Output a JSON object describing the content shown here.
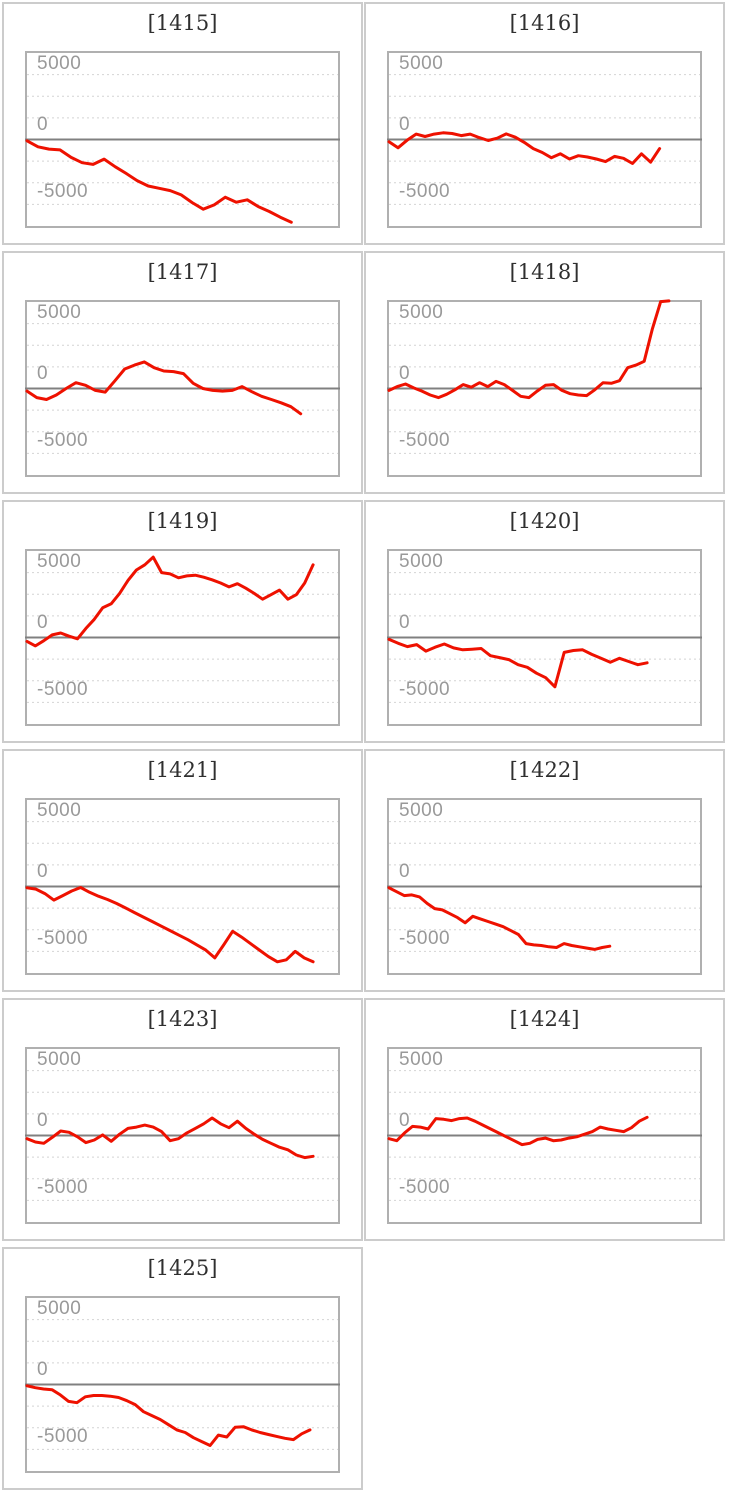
{
  "axis": {
    "labels": [
      "5000",
      "0",
      "-5000"
    ]
  },
  "colors": {
    "series_line": "#ee1100",
    "zero_line": "#808080",
    "gridline": "#d4d4d4",
    "plot_border": "#b0b0b0",
    "cell_border": "#cccccc",
    "axis_label": "#999999",
    "title_text": "#2f2f2f",
    "background": "#ffffff"
  },
  "chart_data": [
    {
      "type": "line",
      "title": "[1415]",
      "y_ticks": [
        5000,
        0,
        -5000
      ],
      "ylim": [
        -6667,
        6667
      ],
      "grid": "dashed",
      "end_frac": 0.85,
      "values": [
        -100,
        -560,
        -740,
        -800,
        -1380,
        -1790,
        -1920,
        -1510,
        -2100,
        -2610,
        -3170,
        -3580,
        -3760,
        -3940,
        -4270,
        -4860,
        -5370,
        -5040,
        -4450,
        -4830,
        -4650,
        -5170,
        -5550,
        -5990,
        -6370
      ]
    },
    {
      "type": "line",
      "title": "[1416]",
      "y_ticks": [
        5000,
        0,
        -5000
      ],
      "ylim": [
        -6667,
        6667
      ],
      "grid": "dashed",
      "end_frac": 0.87,
      "values": [
        -180,
        -640,
        -60,
        420,
        230,
        420,
        520,
        460,
        300,
        420,
        150,
        -80,
        100,
        430,
        180,
        -220,
        -700,
        -1000,
        -1400,
        -1100,
        -1500,
        -1250,
        -1350,
        -1500,
        -1700,
        -1300,
        -1450,
        -1850,
        -1100,
        -1750,
        -700
      ]
    },
    {
      "type": "line",
      "title": "[1417]",
      "y_ticks": [
        5000,
        0,
        -5000
      ],
      "ylim": [
        -6667,
        6667
      ],
      "grid": "dashed",
      "end_frac": 0.88,
      "values": [
        -200,
        -700,
        -850,
        -500,
        0,
        450,
        250,
        -150,
        -280,
        600,
        1500,
        1800,
        2050,
        1600,
        1350,
        1300,
        1150,
        400,
        0,
        -150,
        -200,
        -150,
        150,
        -250,
        -600,
        -850,
        -1100,
        -1400,
        -1950
      ]
    },
    {
      "type": "line",
      "title": "[1418]",
      "y_ticks": [
        5000,
        0,
        -5000
      ],
      "ylim": [
        -6667,
        6667
      ],
      "grid": "dashed",
      "end_frac": 0.9,
      "values": [
        -150,
        150,
        350,
        50,
        -200,
        -500,
        -700,
        -450,
        -100,
        300,
        100,
        450,
        150,
        550,
        300,
        -150,
        -600,
        -700,
        -200,
        250,
        300,
        -150,
        -400,
        -500,
        -550,
        -100,
        450,
        400,
        600,
        1600,
        1800,
        2100,
        4600,
        6700,
        6750
      ]
    },
    {
      "type": "line",
      "title": "[1419]",
      "y_ticks": [
        5000,
        0,
        -5000
      ],
      "ylim": [
        -6667,
        6667
      ],
      "grid": "dashed",
      "end_frac": 0.92,
      "values": [
        -300,
        -650,
        -250,
        200,
        350,
        100,
        -100,
        700,
        1400,
        2300,
        2600,
        3400,
        4400,
        5200,
        5600,
        6200,
        5000,
        4900,
        4600,
        4750,
        4800,
        4650,
        4450,
        4200,
        3900,
        4150,
        3800,
        3400,
        2950,
        3300,
        3650,
        2950,
        3300,
        4200,
        5600
      ]
    },
    {
      "type": "line",
      "title": "[1420]",
      "y_ticks": [
        5000,
        0,
        -5000
      ],
      "ylim": [
        -6667,
        6667
      ],
      "grid": "dashed",
      "end_frac": 0.83,
      "values": [
        -150,
        -450,
        -700,
        -550,
        -1050,
        -750,
        -500,
        -800,
        -950,
        -900,
        -850,
        -1400,
        -1550,
        -1700,
        -2100,
        -2300,
        -2750,
        -3100,
        -3800,
        -1150,
        -1000,
        -950,
        -1300,
        -1600,
        -1900,
        -1600,
        -1850,
        -2100,
        -1950
      ]
    },
    {
      "type": "line",
      "title": "[1421]",
      "y_ticks": [
        5000,
        0,
        -5000
      ],
      "ylim": [
        -6667,
        6667
      ],
      "grid": "dashed",
      "end_frac": 0.92,
      "values": [
        -100,
        -200,
        -550,
        -1050,
        -700,
        -350,
        -80,
        -450,
        -750,
        -1000,
        -1300,
        -1650,
        -2000,
        -2350,
        -2700,
        -3050,
        -3400,
        -3750,
        -4100,
        -4500,
        -4900,
        -5500,
        -4500,
        -3450,
        -3900,
        -4400,
        -4900,
        -5400,
        -5800,
        -5650,
        -5000,
        -5500,
        -5800
      ]
    },
    {
      "type": "line",
      "title": "[1422]",
      "y_ticks": [
        5000,
        0,
        -5000
      ],
      "ylim": [
        -6667,
        6667
      ],
      "grid": "dashed",
      "end_frac": 0.71,
      "values": [
        -100,
        -400,
        -700,
        -650,
        -800,
        -1300,
        -1700,
        -1800,
        -2100,
        -2400,
        -2800,
        -2300,
        -2500,
        -2700,
        -2900,
        -3100,
        -3400,
        -3700,
        -4400,
        -4500,
        -4550,
        -4650,
        -4700,
        -4400,
        -4550,
        -4650,
        -4750,
        -4850,
        -4700,
        -4600
      ]
    },
    {
      "type": "line",
      "title": "[1423]",
      "y_ticks": [
        5000,
        0,
        -5000
      ],
      "ylim": [
        -6667,
        6667
      ],
      "grid": "dashed",
      "end_frac": 0.92,
      "values": [
        -250,
        -500,
        -600,
        -150,
        350,
        250,
        -100,
        -550,
        -350,
        50,
        -450,
        100,
        550,
        650,
        800,
        650,
        300,
        -400,
        -250,
        200,
        550,
        900,
        1350,
        900,
        600,
        1100,
        550,
        100,
        -300,
        -600,
        -900,
        -1100,
        -1500,
        -1700,
        -1600
      ]
    },
    {
      "type": "line",
      "title": "[1424]",
      "y_ticks": [
        5000,
        0,
        -5000
      ],
      "ylim": [
        -6667,
        6667
      ],
      "grid": "dashed",
      "end_frac": 0.83,
      "values": [
        -250,
        -400,
        200,
        700,
        650,
        500,
        1300,
        1250,
        1150,
        1300,
        1350,
        1100,
        800,
        500,
        200,
        -100,
        -400,
        -700,
        -600,
        -300,
        -200,
        -400,
        -350,
        -200,
        -100,
        100,
        300,
        650,
        500,
        400,
        300,
        600,
        1100,
        1400
      ]
    },
    {
      "type": "line",
      "title": "[1425]",
      "y_ticks": [
        5000,
        0,
        -5000
      ],
      "ylim": [
        -6667,
        6667
      ],
      "grid": "dashed",
      "end_frac": 0.91,
      "values": [
        -100,
        -250,
        -350,
        -400,
        -800,
        -1300,
        -1400,
        -950,
        -850,
        -850,
        -900,
        -1000,
        -1250,
        -1550,
        -2100,
        -2400,
        -2700,
        -3100,
        -3500,
        -3700,
        -4100,
        -4400,
        -4700,
        -3900,
        -4050,
        -3300,
        -3250,
        -3500,
        -3700,
        -3850,
        -4000,
        -4150,
        -4250,
        -3800,
        -3500
      ]
    }
  ]
}
